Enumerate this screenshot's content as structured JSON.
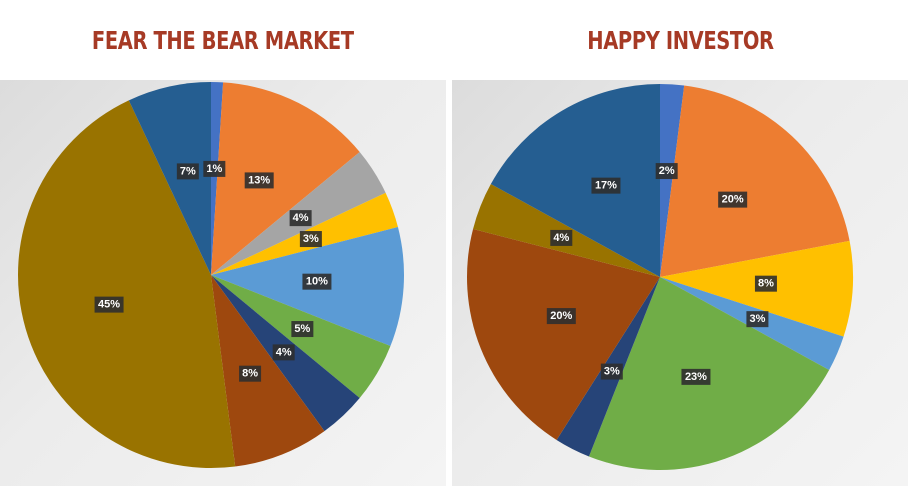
{
  "chart_data": [
    {
      "type": "pie",
      "title": "FEAR THE BEAR MARKET",
      "slices": [
        {
          "value": 1,
          "label": "1%",
          "color": "#4472c4"
        },
        {
          "value": 13,
          "label": "13%",
          "color": "#ed7d31"
        },
        {
          "value": 4,
          "label": "4%",
          "color": "#a5a5a5"
        },
        {
          "value": 3,
          "label": "3%",
          "color": "#ffc000"
        },
        {
          "value": 10,
          "label": "10%",
          "color": "#5b9bd5"
        },
        {
          "value": 5,
          "label": "5%",
          "color": "#70ad47"
        },
        {
          "value": 4,
          "label": "4%",
          "color": "#264478"
        },
        {
          "value": 8,
          "label": "8%",
          "color": "#9e480e"
        },
        {
          "value": 45,
          "label": "45%",
          "color": "#997300"
        },
        {
          "value": 7,
          "label": "7%",
          "color": "#255e91"
        }
      ]
    },
    {
      "type": "pie",
      "title": "HAPPY INVESTOR",
      "slices": [
        {
          "value": 2,
          "label": "2%",
          "color": "#4472c4"
        },
        {
          "value": 20,
          "label": "20%",
          "color": "#ed7d31"
        },
        {
          "value": 8,
          "label": "8%",
          "color": "#ffc000"
        },
        {
          "value": 3,
          "label": "3%",
          "color": "#5b9bd5"
        },
        {
          "value": 23,
          "label": "23%",
          "color": "#70ad47"
        },
        {
          "value": 3,
          "label": "3%",
          "color": "#264478"
        },
        {
          "value": 20,
          "label": "20%",
          "color": "#9e480e"
        },
        {
          "value": 4,
          "label": "4%",
          "color": "#997300"
        },
        {
          "value": 17,
          "label": "17%",
          "color": "#255e91"
        }
      ]
    }
  ]
}
